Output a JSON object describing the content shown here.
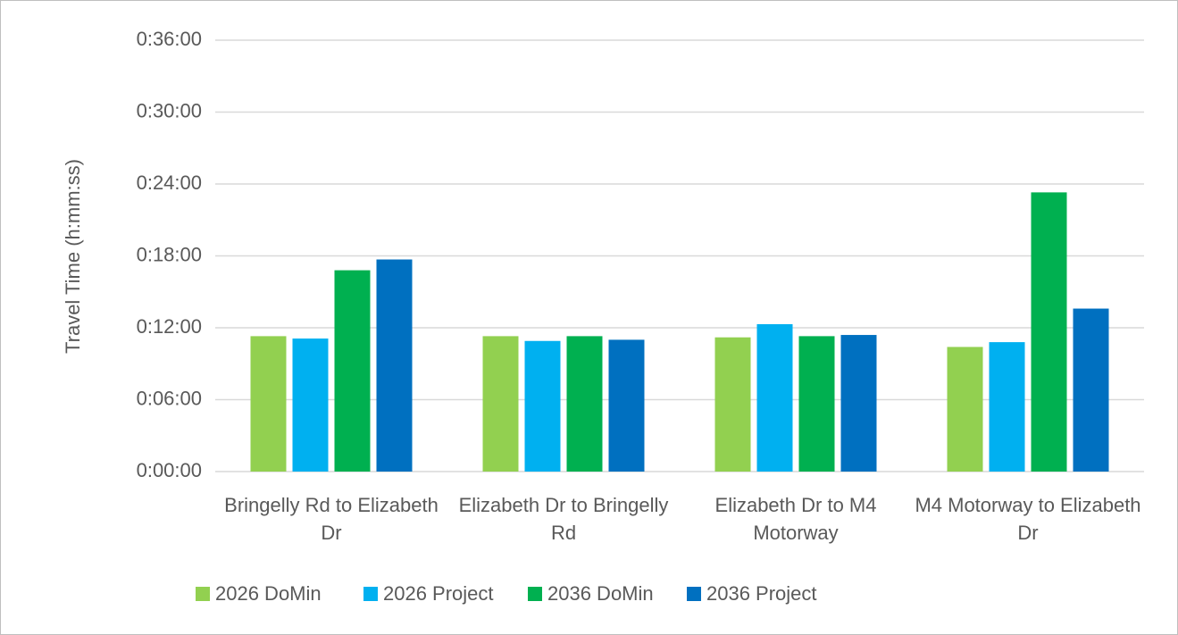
{
  "chart_data": {
    "type": "bar",
    "y_axis_label": "Travel Time (h:mm:ss)",
    "categories": [
      "Bringelly Rd to Elizabeth Dr",
      "Elizabeth Dr to Bringelly Rd",
      "Elizabeth Dr to M4 Motorway",
      "M4 Motorway to Elizabeth Dr"
    ],
    "series": [
      {
        "name": "2026 DoMin",
        "color": "#92d050",
        "values": [
          11.3,
          11.3,
          11.2,
          10.4
        ]
      },
      {
        "name": "2026 Project",
        "color": "#00b0f0",
        "values": [
          11.1,
          10.9,
          12.3,
          10.8
        ]
      },
      {
        "name": "2036 DoMin",
        "color": "#00b050",
        "values": [
          16.8,
          11.3,
          11.3,
          23.3
        ]
      },
      {
        "name": "2036 Project",
        "color": "#0070c0",
        "values": [
          17.7,
          11.0,
          11.4,
          13.6
        ]
      }
    ],
    "ylim": [
      0,
      36
    ],
    "yticks": [
      {
        "value": 0,
        "label": "0:00:00"
      },
      {
        "value": 6,
        "label": "0:06:00"
      },
      {
        "value": 12,
        "label": "0:12:00"
      },
      {
        "value": 18,
        "label": "0:18:00"
      },
      {
        "value": 24,
        "label": "0:24:00"
      },
      {
        "value": 30,
        "label": "0:30:00"
      },
      {
        "value": 36,
        "label": "0:36:00"
      }
    ],
    "grid": true,
    "legend": "bottom"
  }
}
